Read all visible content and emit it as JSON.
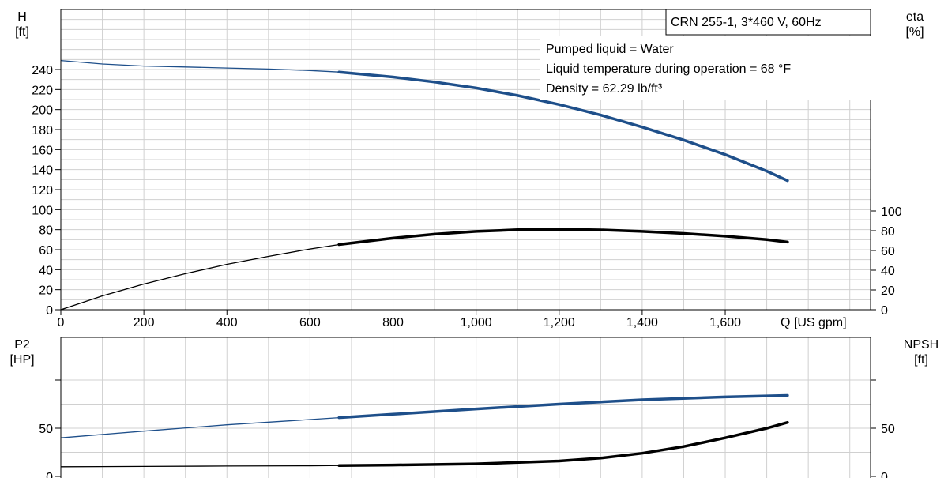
{
  "chart_data": [
    {
      "type": "line",
      "title": "CRN 255-1, 3*460 V, 60Hz",
      "annotations": [
        "Pumped liquid = Water",
        "Liquid temperature during operation = 68 °F",
        "Density = 62.29 lb/ft³"
      ],
      "xlabel": "Q [US gpm]",
      "xlim": [
        0,
        1950
      ],
      "x_ticks": [
        "0",
        "200",
        "400",
        "600",
        "800",
        "1,000",
        "1,200",
        "1,400",
        "1,600"
      ],
      "ylabel_left": [
        "H",
        "[ft]"
      ],
      "ylim_left": [
        0,
        300
      ],
      "y_ticks_left": [
        "0",
        "20",
        "40",
        "60",
        "80",
        "100",
        "120",
        "140",
        "160",
        "180",
        "200",
        "220",
        "240"
      ],
      "ylabel_right": [
        "eta",
        "[%]"
      ],
      "ylim_right": [
        0,
        100
      ],
      "y_ticks_right": [
        "0",
        "20",
        "40",
        "60",
        "80",
        "100"
      ],
      "grid": true,
      "series": [
        {
          "axis": "left",
          "color": "#1e4f8a",
          "duty_range": [
            670,
            1750
          ],
          "x": [
            0,
            100,
            200,
            300,
            400,
            500,
            600,
            670,
            800,
            900,
            1000,
            1100,
            1200,
            1300,
            1400,
            1500,
            1600,
            1700,
            1750
          ],
          "values": [
            249,
            245.5,
            243.5,
            242.5,
            241.5,
            240.5,
            239,
            237.5,
            232.5,
            227.5,
            221.5,
            214,
            205,
            194.5,
            182.5,
            169.5,
            155,
            138.5,
            129
          ]
        },
        {
          "axis": "right",
          "color": "#000000",
          "duty_range": [
            670,
            1750
          ],
          "x": [
            0,
            100,
            200,
            300,
            400,
            500,
            600,
            670,
            800,
            900,
            1000,
            1100,
            1200,
            1300,
            1400,
            1500,
            1600,
            1700,
            1750
          ],
          "values": [
            0,
            14,
            26,
            36.5,
            46,
            54,
            61.5,
            66,
            72.5,
            76.5,
            79.3,
            81,
            81.5,
            80.8,
            79.3,
            77.2,
            74.5,
            71,
            68.5
          ]
        }
      ]
    },
    {
      "type": "line",
      "xlim": [
        0,
        1950
      ],
      "ylabel_left": [
        "P2",
        "[HP]"
      ],
      "ylim_left": [
        0,
        100
      ],
      "y_ticks_left": [
        "0",
        "50"
      ],
      "ylabel_right": [
        "NPSH",
        "[ft]"
      ],
      "ylim_right": [
        0,
        100
      ],
      "y_ticks_right": [
        "0",
        "50"
      ],
      "grid": true,
      "series": [
        {
          "axis": "left",
          "color": "#1e4f8a",
          "duty_range": [
            670,
            1750
          ],
          "x": [
            0,
            200,
            400,
            600,
            670,
            800,
            1000,
            1200,
            1400,
            1600,
            1750
          ],
          "values": [
            40,
            47,
            53.5,
            59,
            61,
            64.5,
            70,
            75,
            79.5,
            82.5,
            84
          ]
        },
        {
          "axis": "right",
          "color": "#000000",
          "duty_range": [
            670,
            1750
          ],
          "x": [
            0,
            200,
            400,
            600,
            670,
            800,
            1000,
            1200,
            1300,
            1400,
            1500,
            1600,
            1700,
            1750
          ],
          "values": [
            10,
            10.3,
            10.7,
            11,
            11.3,
            11.8,
            13,
            16,
            19,
            24,
            31,
            40,
            50,
            56
          ]
        }
      ]
    }
  ]
}
